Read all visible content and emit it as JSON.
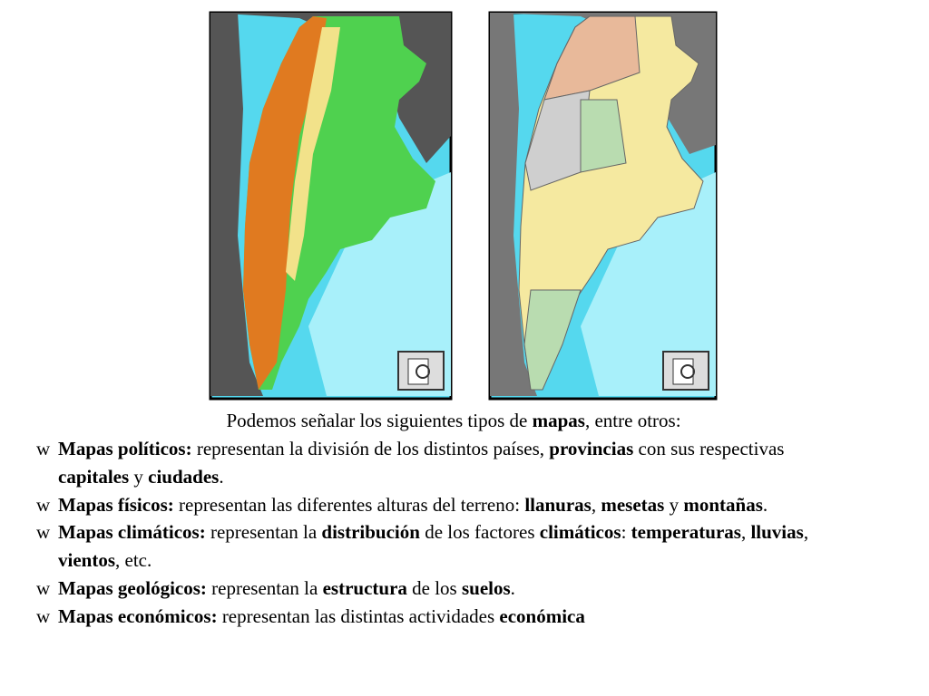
{
  "intro": [
    {
      "text": "Podemos señalar los siguientes tipos de ",
      "bold": false
    },
    {
      "text": "mapas",
      "bold": true
    },
    {
      "text": ", entre otros:",
      "bold": false
    }
  ],
  "bullet": "w",
  "items": [
    [
      {
        "text": "Mapas políticos:",
        "bold": true
      },
      {
        "text": " representan la división de los distintos países, ",
        "bold": false
      },
      {
        "text": "provincias",
        "bold": true
      },
      {
        "text": " con sus respectivas ",
        "bold": false
      },
      {
        "text": "capitales",
        "bold": true
      },
      {
        "text": " y ",
        "bold": false
      },
      {
        "text": "ciudades",
        "bold": true
      },
      {
        "text": ".",
        "bold": false
      }
    ],
    [
      {
        "text": "Mapas físicos:",
        "bold": true
      },
      {
        "text": " representan las diferentes alturas del terreno: ",
        "bold": false
      },
      {
        "text": "llanuras",
        "bold": true
      },
      {
        "text": ", ",
        "bold": false
      },
      {
        "text": "mesetas",
        "bold": true
      },
      {
        "text": " y ",
        "bold": false
      },
      {
        "text": "montañas",
        "bold": true
      },
      {
        "text": ".",
        "bold": false
      }
    ],
    [
      {
        "text": "Mapas climáticos:",
        "bold": true
      },
      {
        "text": " representan la ",
        "bold": false
      },
      {
        "text": "distribución",
        "bold": true
      },
      {
        "text": " de los factores ",
        "bold": false
      },
      {
        "text": "climáticos",
        "bold": true
      },
      {
        "text": ": ",
        "bold": false
      },
      {
        "text": "temperaturas",
        "bold": true
      },
      {
        "text": ", ",
        "bold": false
      },
      {
        "text": "lluvias",
        "bold": true
      },
      {
        "text": ", ",
        "bold": false
      },
      {
        "text": "vientos",
        "bold": true
      },
      {
        "text": ", etc.",
        "bold": false
      }
    ],
    [
      {
        "text": "Mapas geológicos:",
        "bold": true
      },
      {
        "text": " representan la ",
        "bold": false
      },
      {
        "text": "estructura",
        "bold": true
      },
      {
        "text": " de los ",
        "bold": false
      },
      {
        "text": "suelos",
        "bold": true
      },
      {
        "text": ".",
        "bold": false
      }
    ],
    [
      {
        "text": "Mapas económicos:",
        "bold": true
      },
      {
        "text": " representan las distintas actividades ",
        "bold": false
      },
      {
        "text": "económica",
        "bold": true
      }
    ]
  ]
}
